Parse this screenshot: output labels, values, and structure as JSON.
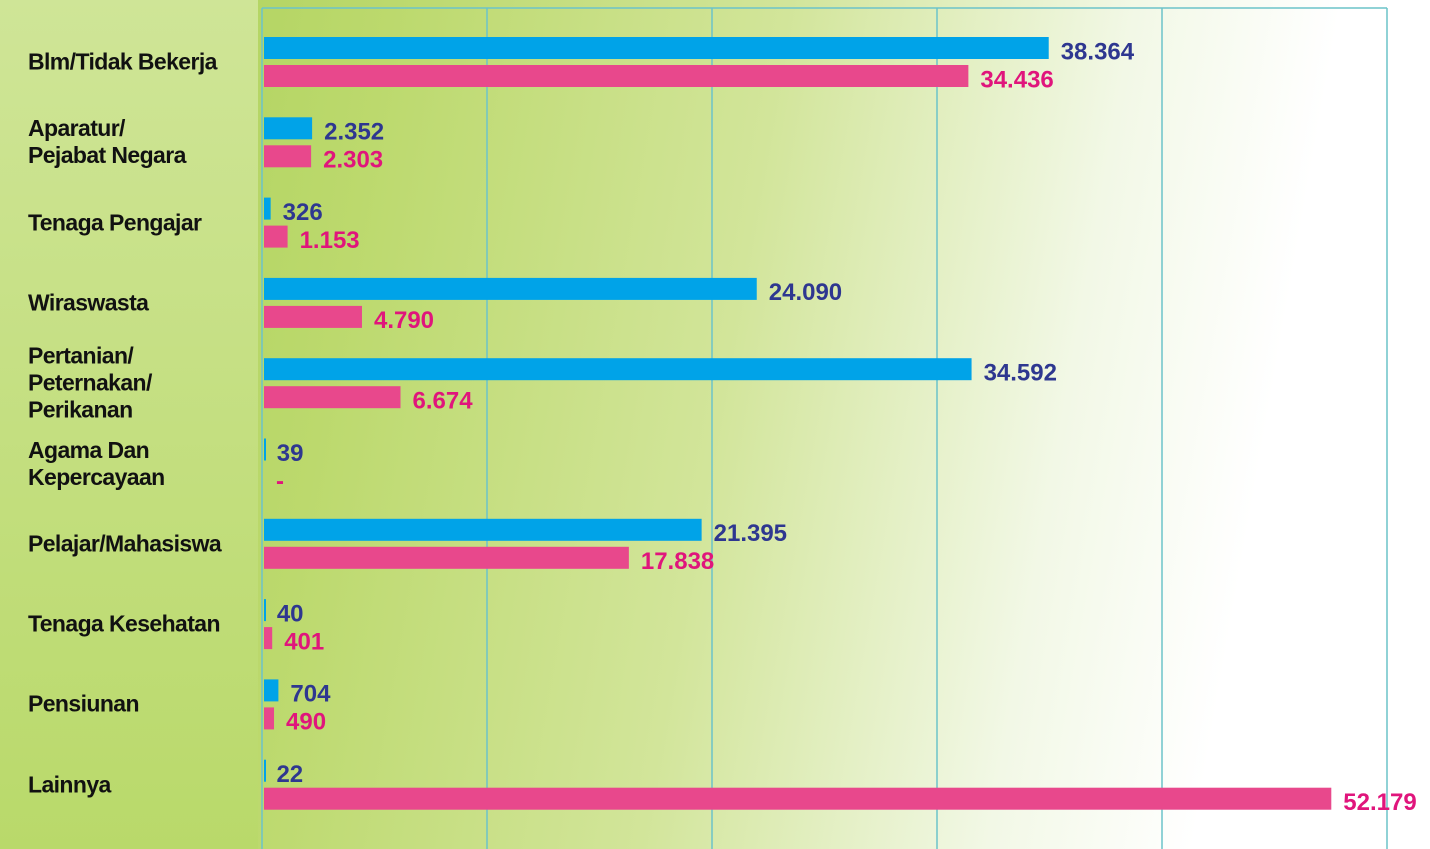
{
  "chart_data": {
    "type": "hbar",
    "categories": [
      "Blm/Tidak Bekerja",
      "Aparatur/\nPejabat Negara",
      "Tenaga Pengajar",
      "Wiraswasta",
      "Pertanian/\nPeternakan/\nPerikanan",
      "Agama Dan Kepercayaan",
      "Pelajar/Mahasiswa",
      "Tenaga Kesehatan",
      "Pensiunan",
      "Lainnya"
    ],
    "series": [
      {
        "color": "#00a3e8",
        "label_color": "#2e3790",
        "values": [
          38364,
          2352,
          326,
          24090,
          34592,
          39,
          21395,
          40,
          704,
          22
        ],
        "value_labels": [
          "38.364",
          "2.352",
          "326",
          "24.090",
          "34.592",
          "39",
          "21.395",
          "40",
          "704",
          "22"
        ]
      },
      {
        "color": "#e8488c",
        "label_color": "#e0157c",
        "values": [
          34436,
          2303,
          1153,
          4790,
          6674,
          null,
          17838,
          401,
          490,
          52179
        ],
        "value_labels": [
          "34.436",
          "2.303",
          "1.153",
          "4.790",
          "6.674",
          "-",
          "17.838",
          "401",
          "490",
          "52.179"
        ]
      }
    ],
    "xlim": [
      0,
      55000
    ],
    "xticks": [
      0,
      11000,
      22000,
      33000,
      44000,
      55000
    ],
    "grid": true
  }
}
